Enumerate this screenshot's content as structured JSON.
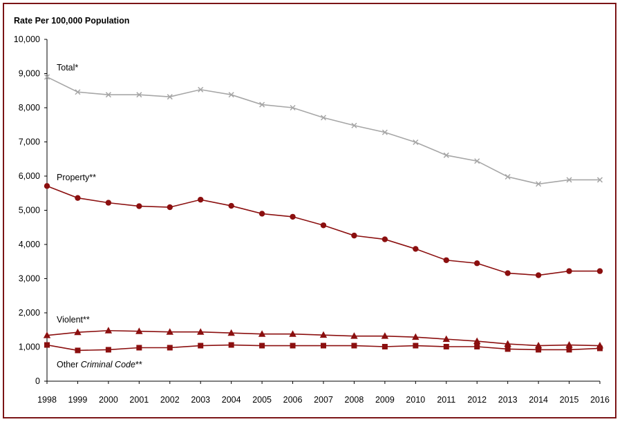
{
  "chart_data": {
    "type": "line",
    "title": "",
    "ylabel": "Rate Per 100,000 Population",
    "xlabel": "",
    "ylim": [
      0,
      10000
    ],
    "yticks": [
      "0",
      "1,000",
      "2,000",
      "3,000",
      "4,000",
      "5,000",
      "6,000",
      "7,000",
      "8,000",
      "9,000",
      "10,000"
    ],
    "x": [
      "1998",
      "1999",
      "2000",
      "2001",
      "2002",
      "2003",
      "2004",
      "2005",
      "2006",
      "2007",
      "2008",
      "2009",
      "2010",
      "2011",
      "2012",
      "2013",
      "2014",
      "2015",
      "2016"
    ],
    "series": [
      {
        "name": "Total*",
        "label": "Total*",
        "color": "#a6a6a6",
        "marker": "x",
        "values": [
          8900,
          8460,
          8380,
          8380,
          8320,
          8530,
          8380,
          8090,
          8000,
          7710,
          7480,
          7280,
          6990,
          6610,
          6440,
          5980,
          5770,
          5890,
          5890
        ]
      },
      {
        "name": "Property**",
        "label": "Property**",
        "color": "#8b0f0f",
        "marker": "circle",
        "values": [
          5710,
          5360,
          5220,
          5120,
          5090,
          5310,
          5130,
          4900,
          4810,
          4560,
          4260,
          4150,
          3870,
          3540,
          3450,
          3160,
          3100,
          3220,
          3220
        ]
      },
      {
        "name": "Violent**",
        "label": "Violent**",
        "color": "#8b0f0f",
        "marker": "triangle",
        "values": [
          1340,
          1430,
          1480,
          1460,
          1440,
          1440,
          1410,
          1380,
          1380,
          1350,
          1320,
          1320,
          1290,
          1230,
          1170,
          1090,
          1040,
          1060,
          1040
        ]
      },
      {
        "name": "Other Criminal Code**",
        "label_prefix": "Other ",
        "label_italic": "Criminal Code",
        "label_suffix": "**",
        "color": "#8b0f0f",
        "marker": "square",
        "values": [
          1060,
          900,
          920,
          980,
          980,
          1040,
          1060,
          1040,
          1040,
          1040,
          1040,
          1010,
          1040,
          1010,
          1010,
          940,
          920,
          920,
          960
        ]
      }
    ]
  }
}
